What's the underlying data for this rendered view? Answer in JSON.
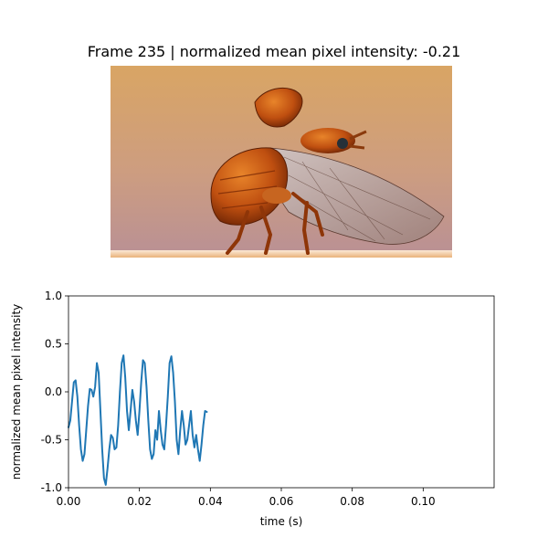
{
  "figure": {
    "title": "Frame 235 | normalized mean pixel intensity: -0.21",
    "frame_number": 235,
    "current_value": -0.21
  },
  "image": {
    "subject": "orange beetle with spread translucent wings, in flight posture",
    "background_colors": [
      "#d4a36a",
      "#c79b85",
      "#b38a8a"
    ],
    "beetle_color": "#c25a14"
  },
  "chart_data": {
    "type": "line",
    "title": "",
    "xlabel": "time (s)",
    "ylabel": "normalized mean pixel intensity",
    "xlim": [
      0,
      0.12
    ],
    "ylim": [
      -1.0,
      1.0
    ],
    "xticks": [
      "0.00",
      "0.02",
      "0.04",
      "0.06",
      "0.08",
      "0.10"
    ],
    "xtick_values": [
      0,
      0.02,
      0.04,
      0.06,
      0.08,
      0.1
    ],
    "yticks": [
      "1.0",
      "0.5",
      "0.0",
      "-0.5",
      "-1.0"
    ],
    "ytick_values": [
      1.0,
      0.5,
      0.0,
      -0.5,
      -1.0
    ],
    "grid": false,
    "color": "#1f77b4",
    "series": [
      {
        "x": [
          0.0,
          0.0005,
          0.001,
          0.0015,
          0.002,
          0.0025,
          0.003,
          0.0035,
          0.004,
          0.0045,
          0.005,
          0.0055,
          0.006,
          0.0065,
          0.007,
          0.0075,
          0.008,
          0.0085,
          0.009,
          0.0095,
          0.01,
          0.0105,
          0.011,
          0.0115,
          0.012,
          0.0125,
          0.013,
          0.0135,
          0.014,
          0.0145,
          0.015,
          0.0155,
          0.016,
          0.0165,
          0.017,
          0.0175,
          0.018,
          0.0185,
          0.019,
          0.0195,
          0.02,
          0.0205,
          0.021,
          0.0215,
          0.022,
          0.0225,
          0.023,
          0.0235,
          0.024,
          0.0245,
          0.025,
          0.0255,
          0.026,
          0.0265,
          0.027,
          0.0275,
          0.028,
          0.0285,
          0.029,
          0.0295,
          0.03,
          0.0305,
          0.031,
          0.0315,
          0.032,
          0.0325,
          0.033,
          0.0335,
          0.034,
          0.0345,
          0.035,
          0.0355,
          0.036,
          0.0365,
          0.037,
          0.0375,
          0.038,
          0.0385,
          0.039
        ],
        "y": [
          -0.37,
          -0.3,
          -0.1,
          0.1,
          0.12,
          -0.05,
          -0.35,
          -0.6,
          -0.72,
          -0.65,
          -0.4,
          -0.15,
          0.03,
          0.02,
          -0.05,
          0.05,
          0.3,
          0.2,
          -0.2,
          -0.6,
          -0.9,
          -0.97,
          -0.8,
          -0.6,
          -0.45,
          -0.48,
          -0.6,
          -0.58,
          -0.35,
          0.0,
          0.3,
          0.38,
          0.15,
          -0.2,
          -0.4,
          -0.2,
          0.02,
          -0.1,
          -0.3,
          -0.45,
          -0.2,
          0.1,
          0.33,
          0.3,
          0.05,
          -0.3,
          -0.6,
          -0.7,
          -0.65,
          -0.4,
          -0.5,
          -0.2,
          -0.4,
          -0.55,
          -0.6,
          -0.35,
          -0.05,
          0.3,
          0.37,
          0.2,
          -0.1,
          -0.5,
          -0.65,
          -0.4,
          -0.2,
          -0.35,
          -0.55,
          -0.5,
          -0.35,
          -0.2,
          -0.45,
          -0.58,
          -0.45,
          -0.6,
          -0.72,
          -0.55,
          -0.35,
          -0.2,
          -0.21
        ]
      }
    ]
  }
}
